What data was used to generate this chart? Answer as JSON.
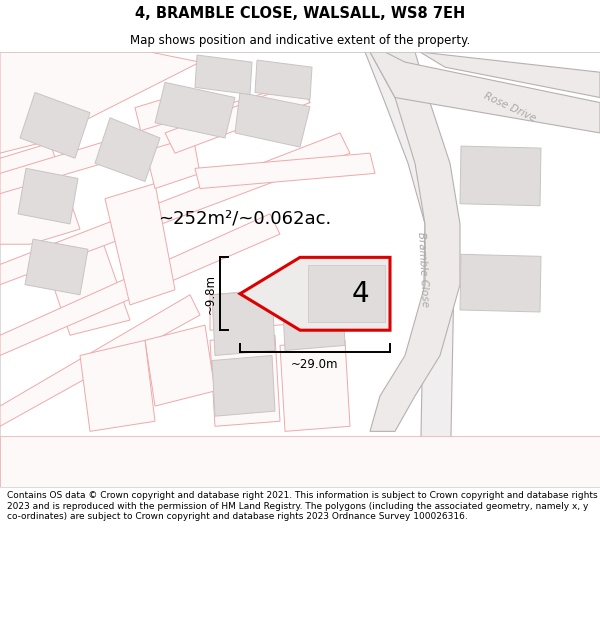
{
  "title": "4, BRAMBLE CLOSE, WALSALL, WS8 7EH",
  "subtitle": "Map shows position and indicative extent of the property.",
  "footer": "Contains OS data © Crown copyright and database right 2021. This information is subject to Crown copyright and database rights 2023 and is reproduced with the permission of HM Land Registry. The polygons (including the associated geometry, namely x, y co-ordinates) are subject to Crown copyright and database rights 2023 Ordnance Survey 100026316.",
  "area_label": "~252m²/~0.062ac.",
  "width_label": "~29.0m",
  "height_label": "~9.8m",
  "number_label": "4",
  "map_bg": "#ffffff",
  "plot_outline": "#dd0000",
  "plot_fill": "#eeebeb",
  "road_line_color": "#f0a8a8",
  "road_fill": "#f8f0f0",
  "building_fill": "#e0dcdc",
  "building_outline": "#c8c4c4",
  "road_gray_color": "#b8b0b0",
  "road_label_color": "#aaa8a8",
  "title_fontsize": 10.5,
  "subtitle_fontsize": 8.5,
  "footer_fontsize": 6.5
}
